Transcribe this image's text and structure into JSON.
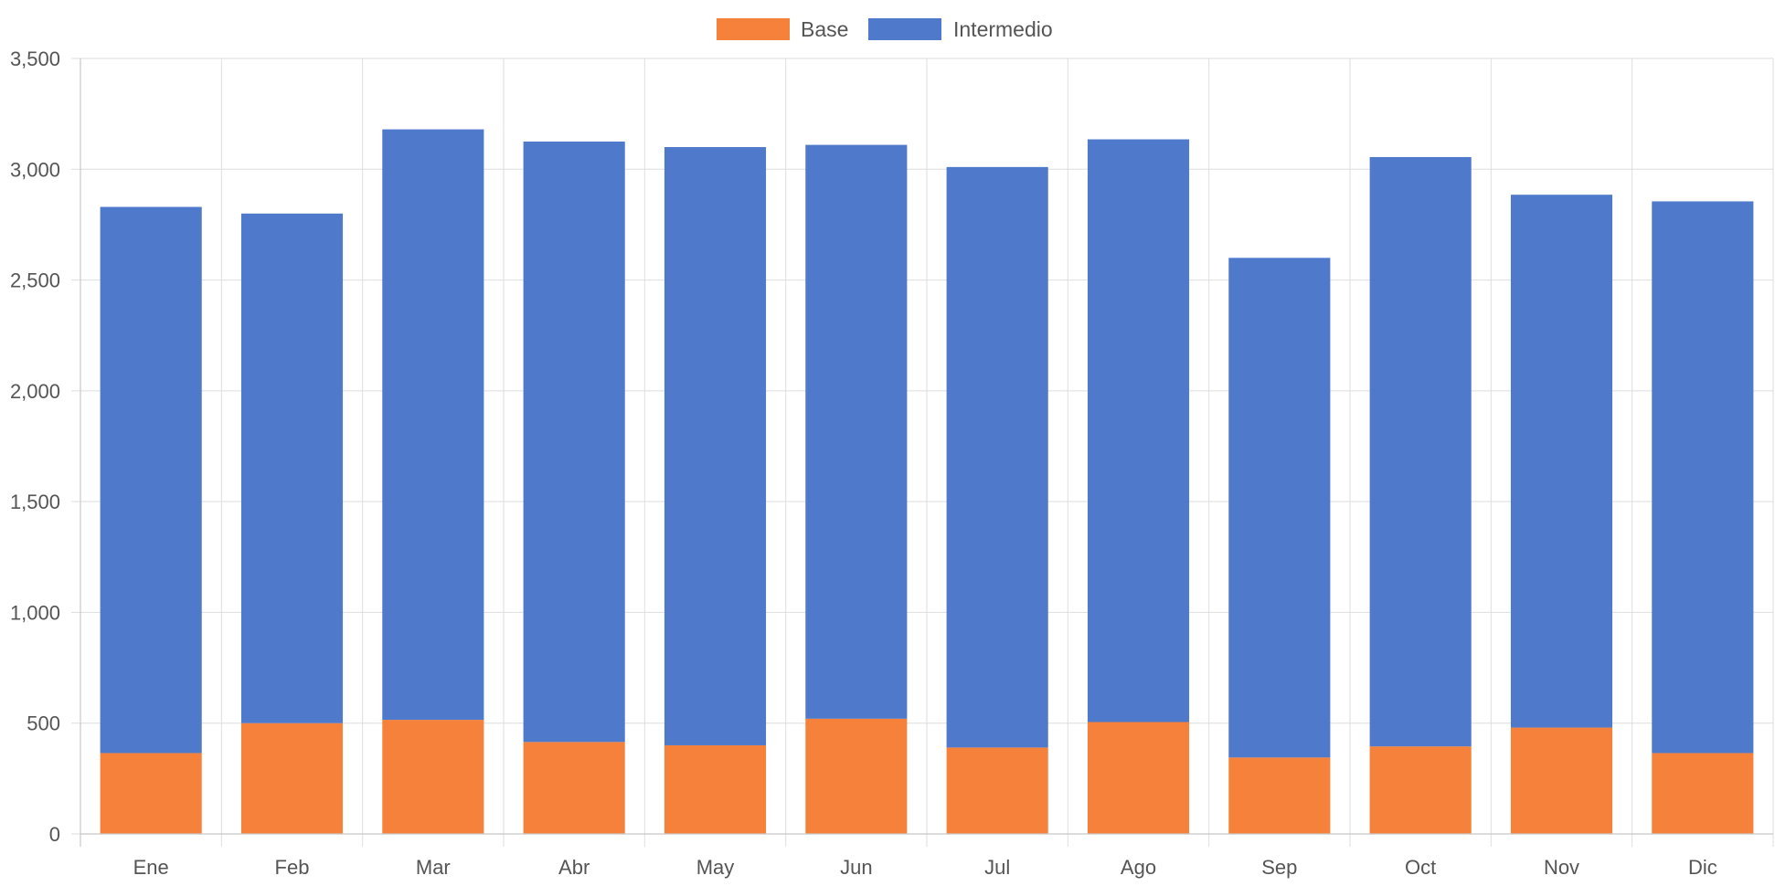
{
  "chart_data": {
    "type": "bar",
    "stacked": true,
    "categories": [
      "Ene",
      "Feb",
      "Mar",
      "Abr",
      "May",
      "Jun",
      "Jul",
      "Ago",
      "Sep",
      "Oct",
      "Nov",
      "Dic"
    ],
    "series": [
      {
        "name": "Base",
        "color": "#f5813a",
        "values": [
          365,
          500,
          515,
          415,
          400,
          520,
          390,
          505,
          345,
          395,
          480,
          365
        ]
      },
      {
        "name": "Intermedio",
        "color": "#4f7acb",
        "values": [
          2465,
          2300,
          2665,
          2710,
          2700,
          2590,
          2620,
          2630,
          2255,
          2660,
          2405,
          2490
        ]
      }
    ],
    "y_ticks": [
      "0",
      "500",
      "1,000",
      "1,500",
      "2,000",
      "2,500",
      "3,000",
      "3,500"
    ],
    "ylim": [
      0,
      3500
    ],
    "grid": true,
    "legend": "top-center"
  }
}
